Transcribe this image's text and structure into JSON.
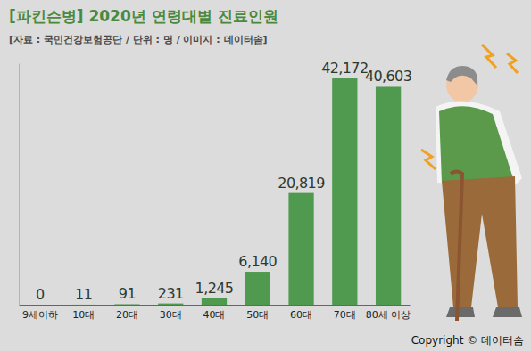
{
  "chart_data": {
    "type": "bar",
    "title": "[파킨슨병] 2020년 연령대별 진료인원",
    "subtitle": "[자료 : 국민건강보험공단 / 단위 : 명 / 이미지 : 데이터솜]",
    "categories": [
      "9세이하",
      "10대",
      "20대",
      "30대",
      "40대",
      "50대",
      "60대",
      "70대",
      "80세 이상"
    ],
    "values": [
      0,
      11,
      91,
      231,
      1245,
      6140,
      20819,
      42172,
      40603
    ],
    "value_labels": [
      "0",
      "11",
      "91",
      "231",
      "1,245",
      "6,140",
      "20,819",
      "42,172",
      "40,603"
    ],
    "color": "#4f9a4f",
    "ylim": [
      0,
      45000
    ],
    "data_labels": true,
    "tick_labels": "x",
    "grid": false,
    "annotations": [
      "Copyright © 데이터솜"
    ]
  }
}
